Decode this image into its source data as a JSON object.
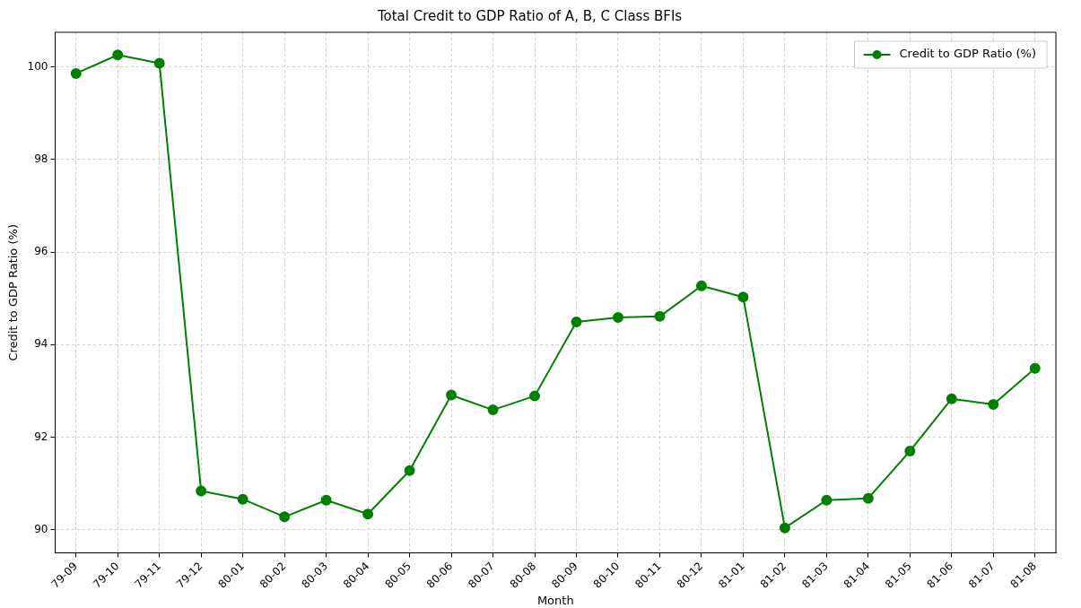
{
  "chart_data": {
    "type": "line",
    "title": "Total Credit to GDP Ratio of A, B, C Class BFIs",
    "xlabel": "Month",
    "ylabel": "Credit to GDP Ratio (%)",
    "categories": [
      "79-09",
      "79-10",
      "79-11",
      "79-12",
      "80-01",
      "80-02",
      "80-03",
      "80-04",
      "80-05",
      "80-06",
      "80-07",
      "80-08",
      "80-09",
      "80-10",
      "80-11",
      "80-12",
      "81-01",
      "81-02",
      "81-03",
      "81-04",
      "81-05",
      "81-06",
      "81-07",
      "81-08"
    ],
    "series": [
      {
        "name": "Credit to GDP Ratio (%)",
        "color": "#008000",
        "values": [
          99.86,
          100.26,
          100.08,
          90.84,
          90.66,
          90.28,
          90.64,
          90.34,
          91.28,
          92.91,
          92.59,
          92.89,
          94.49,
          94.59,
          94.61,
          95.27,
          95.03,
          90.04,
          90.64,
          90.68,
          91.7,
          92.83,
          92.71,
          93.49
        ]
      }
    ],
    "ylim": [
      89.5,
      100.75
    ],
    "yticks": [
      90,
      92,
      94,
      96,
      98,
      100
    ],
    "grid": true,
    "legend": "top right",
    "marker": "circle",
    "line_style": "solid"
  }
}
